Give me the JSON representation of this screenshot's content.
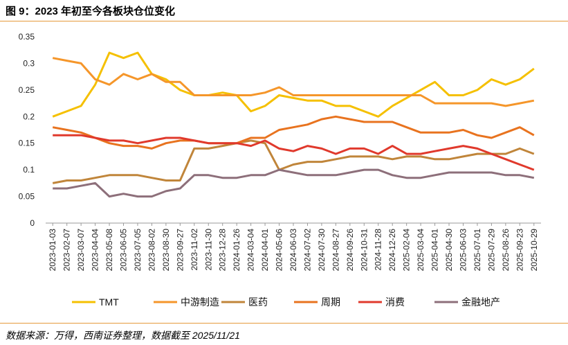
{
  "title": "图 9：2023 年初至今各板块仓位变化",
  "source": "数据来源：万得，西南证券整理，数据截至 2025/11/21",
  "chart_data": {
    "type": "line",
    "title": "",
    "xlabel": "",
    "ylabel": "",
    "ylim": [
      0,
      0.35
    ],
    "yticks": [
      "0",
      "0.05",
      "0.1",
      "0.15",
      "0.2",
      "0.25",
      "0.3",
      "0.35"
    ],
    "grid": false,
    "legend": "bottom",
    "x_labels": [
      "2023-01-03",
      "2023-02-07",
      "2023-03-07",
      "2023-04-04",
      "2023-05-08",
      "2023-06-05",
      "2023-07-05",
      "2023-08-02",
      "2023-08-30",
      "2023-09-27",
      "2023-11-02",
      "2023-11-30",
      "2023-12-28",
      "2024-01-26",
      "2024-03-04",
      "2024-04-01",
      "2024-05-06",
      "2024-06-03",
      "2024-07-02",
      "2024-07-30",
      "2024-08-27",
      "2024-09-26",
      "2024-10-31",
      "2024-11-28",
      "2024-12-26",
      "2025-02-04",
      "2025-03-04",
      "2025-04-01",
      "2025-04-30",
      "2025-06-03",
      "2025-07-01",
      "2025-07-29",
      "2025-08-26",
      "2025-09-23",
      "2025-10-29"
    ],
    "series": [
      {
        "name": "TMT",
        "color": "#f5c000",
        "values": [
          0.2,
          0.21,
          0.22,
          0.26,
          0.32,
          0.31,
          0.32,
          0.28,
          0.27,
          0.25,
          0.24,
          0.24,
          0.245,
          0.24,
          0.21,
          0.22,
          0.24,
          0.235,
          0.23,
          0.23,
          0.22,
          0.22,
          0.21,
          0.2,
          0.22,
          0.235,
          0.25,
          0.265,
          0.24,
          0.24,
          0.25,
          0.27,
          0.26,
          0.27,
          0.29
        ]
      },
      {
        "name": "中游制造",
        "color": "#f5962a",
        "values": [
          0.31,
          0.305,
          0.3,
          0.27,
          0.26,
          0.28,
          0.27,
          0.28,
          0.265,
          0.265,
          0.24,
          0.24,
          0.24,
          0.24,
          0.24,
          0.245,
          0.255,
          0.24,
          0.24,
          0.24,
          0.24,
          0.24,
          0.24,
          0.24,
          0.24,
          0.24,
          0.24,
          0.225,
          0.225,
          0.225,
          0.225,
          0.225,
          0.22,
          0.225,
          0.23
        ]
      },
      {
        "name": "医药",
        "color": "#c0853a",
        "values": [
          0.075,
          0.08,
          0.08,
          0.085,
          0.09,
          0.09,
          0.09,
          0.085,
          0.08,
          0.08,
          0.14,
          0.14,
          0.145,
          0.15,
          0.155,
          0.15,
          0.1,
          0.11,
          0.115,
          0.115,
          0.12,
          0.125,
          0.125,
          0.125,
          0.12,
          0.125,
          0.125,
          0.12,
          0.12,
          0.125,
          0.13,
          0.13,
          0.13,
          0.14,
          0.13
        ]
      },
      {
        "name": "周期",
        "color": "#e8731f",
        "values": [
          0.18,
          0.175,
          0.17,
          0.16,
          0.15,
          0.145,
          0.145,
          0.14,
          0.15,
          0.155,
          0.155,
          0.15,
          0.15,
          0.15,
          0.16,
          0.16,
          0.175,
          0.18,
          0.185,
          0.195,
          0.2,
          0.195,
          0.19,
          0.19,
          0.19,
          0.18,
          0.17,
          0.17,
          0.17,
          0.175,
          0.165,
          0.16,
          0.17,
          0.18,
          0.165
        ]
      },
      {
        "name": "消费",
        "color": "#e0392c",
        "values": [
          0.165,
          0.165,
          0.165,
          0.16,
          0.155,
          0.155,
          0.15,
          0.155,
          0.16,
          0.16,
          0.155,
          0.15,
          0.15,
          0.15,
          0.145,
          0.155,
          0.14,
          0.135,
          0.145,
          0.14,
          0.13,
          0.14,
          0.14,
          0.13,
          0.145,
          0.13,
          0.13,
          0.135,
          0.14,
          0.145,
          0.14,
          0.13,
          0.12,
          0.11,
          0.1
        ]
      },
      {
        "name": "金融地产",
        "color": "#8d6f7a",
        "values": [
          0.065,
          0.065,
          0.07,
          0.075,
          0.05,
          0.055,
          0.05,
          0.05,
          0.06,
          0.065,
          0.09,
          0.09,
          0.085,
          0.085,
          0.09,
          0.09,
          0.1,
          0.095,
          0.09,
          0.09,
          0.09,
          0.095,
          0.1,
          0.1,
          0.09,
          0.085,
          0.085,
          0.09,
          0.095,
          0.095,
          0.095,
          0.095,
          0.09,
          0.09,
          0.085
        ]
      }
    ]
  }
}
